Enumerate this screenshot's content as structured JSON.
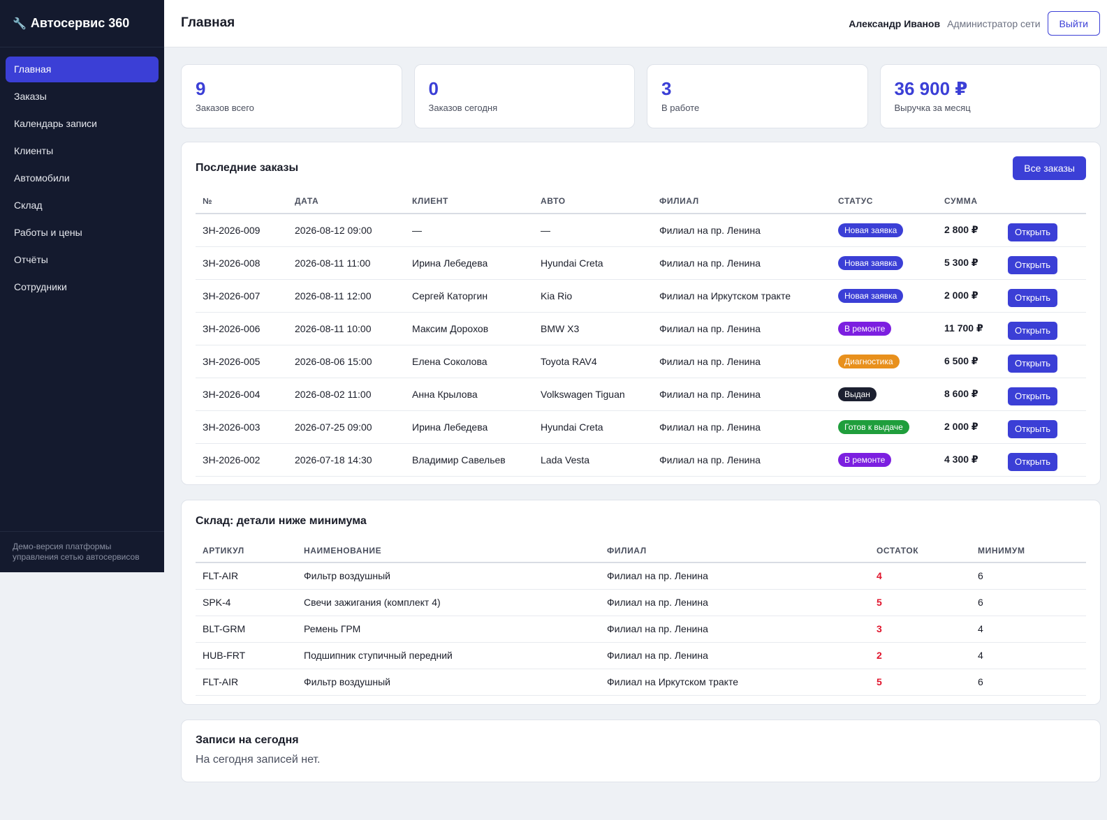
{
  "brand": {
    "title": "Автосервис 360",
    "icon": "wrench-icon"
  },
  "sidebar": {
    "items": [
      {
        "label": "Главная",
        "active": true
      },
      {
        "label": "Заказы",
        "active": false
      },
      {
        "label": "Календарь записи",
        "active": false
      },
      {
        "label": "Клиенты",
        "active": false
      },
      {
        "label": "Автомобили",
        "active": false
      },
      {
        "label": "Склад",
        "active": false
      },
      {
        "label": "Работы и цены",
        "active": false
      },
      {
        "label": "Отчёты",
        "active": false
      },
      {
        "label": "Сотрудники",
        "active": false
      }
    ],
    "footer_line1": "Демо-версия платформы",
    "footer_line2": "управления сетью автосервисов"
  },
  "header": {
    "title": "Главная",
    "user_name": "Александр Иванов",
    "user_role": "Администратор сети",
    "logout_label": "Выйти"
  },
  "stats": [
    {
      "value": "9",
      "label": "Заказов всего"
    },
    {
      "value": "0",
      "label": "Заказов сегодня"
    },
    {
      "value": "3",
      "label": "В работе"
    },
    {
      "value": "36 900 ₽",
      "label": "Выручка за месяц"
    }
  ],
  "orders": {
    "title": "Последние заказы",
    "all_label": "Все заказы",
    "open_label": "Открыть",
    "columns": [
      "№",
      "ДАТА",
      "КЛИЕНТ",
      "АВТО",
      "ФИЛИАЛ",
      "СТАТУС",
      "СУММА",
      ""
    ],
    "rows": [
      {
        "num": "ЗН-2026-009",
        "date": "2026-08-12 09:00",
        "client": "—",
        "car": "—",
        "branch": "Филиал на пр. Ленина",
        "status": "Новая заявка",
        "status_color": "#3b3fd6",
        "amount": "2 800 ₽"
      },
      {
        "num": "ЗН-2026-008",
        "date": "2026-08-11 11:00",
        "client": "Ирина Лебедева",
        "car": "Hyundai Creta",
        "branch": "Филиал на пр. Ленина",
        "status": "Новая заявка",
        "status_color": "#3b3fd6",
        "amount": "5 300 ₽"
      },
      {
        "num": "ЗН-2026-007",
        "date": "2026-08-11 12:00",
        "client": "Сергей Каторгин",
        "car": "Kia Rio",
        "branch": "Филиал на Иркутском тракте",
        "status": "Новая заявка",
        "status_color": "#3b3fd6",
        "amount": "2 000 ₽"
      },
      {
        "num": "ЗН-2026-006",
        "date": "2026-08-11 10:00",
        "client": "Максим Дорохов",
        "car": "BMW X3",
        "branch": "Филиал на пр. Ленина",
        "status": "В ремонте",
        "status_color": "#7c1fe0",
        "amount": "11 700 ₽"
      },
      {
        "num": "ЗН-2026-005",
        "date": "2026-08-06 15:00",
        "client": "Елена Соколова",
        "car": "Toyota RAV4",
        "branch": "Филиал на пр. Ленина",
        "status": "Диагностика",
        "status_color": "#e8901c",
        "amount": "6 500 ₽"
      },
      {
        "num": "ЗН-2026-004",
        "date": "2026-08-02 11:00",
        "client": "Анна Крылова",
        "car": "Volkswagen Tiguan",
        "branch": "Филиал на пр. Ленина",
        "status": "Выдан",
        "status_color": "#1c2030",
        "amount": "8 600 ₽"
      },
      {
        "num": "ЗН-2026-003",
        "date": "2026-07-25 09:00",
        "client": "Ирина Лебедева",
        "car": "Hyundai Creta",
        "branch": "Филиал на пр. Ленина",
        "status": "Готов к выдаче",
        "status_color": "#1f9e3c",
        "amount": "2 000 ₽"
      },
      {
        "num": "ЗН-2026-002",
        "date": "2026-07-18 14:30",
        "client": "Владимир Савельев",
        "car": "Lada Vesta",
        "branch": "Филиал на пр. Ленина",
        "status": "В ремонте",
        "status_color": "#7c1fe0",
        "amount": "4 300 ₽"
      }
    ]
  },
  "stock": {
    "title": "Склад: детали ниже минимума",
    "columns": [
      "АРТИКУЛ",
      "НАИМЕНОВАНИЕ",
      "ФИЛИАЛ",
      "ОСТАТОК",
      "МИНИМУМ"
    ],
    "rows": [
      {
        "sku": "FLT-AIR",
        "name": "Фильтр воздушный",
        "branch": "Филиал на пр. Ленина",
        "remain": "4",
        "min": "6"
      },
      {
        "sku": "SPK-4",
        "name": "Свечи зажигания (комплект 4)",
        "branch": "Филиал на пр. Ленина",
        "remain": "5",
        "min": "6"
      },
      {
        "sku": "BLT-GRM",
        "name": "Ремень ГРМ",
        "branch": "Филиал на пр. Ленина",
        "remain": "3",
        "min": "4"
      },
      {
        "sku": "HUB-FRT",
        "name": "Подшипник ступичный передний",
        "branch": "Филиал на пр. Ленина",
        "remain": "2",
        "min": "4"
      },
      {
        "sku": "FLT-AIR",
        "name": "Фильтр воздушный",
        "branch": "Филиал на Иркутском тракте",
        "remain": "5",
        "min": "6"
      }
    ]
  },
  "appointments": {
    "title": "Записи на сегодня",
    "empty": "На сегодня записей нет."
  },
  "colors": {
    "accent": "#3b3fd6",
    "sidebar_bg": "#141a2e",
    "low_stock": "#e0142c"
  }
}
